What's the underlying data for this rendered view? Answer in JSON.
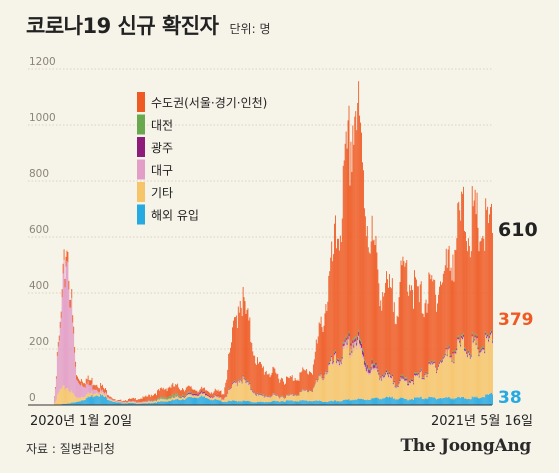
{
  "header": {
    "title": "코로나19 신규 확진자",
    "unit": "단위: 명"
  },
  "footer": {
    "source": "자료 : 질병관리청",
    "logo": "The JoongAng"
  },
  "colors": {
    "background": "#f6f3e8",
    "capital_area": "#ef5a24",
    "daejeon": "#6aa84f",
    "gwangju": "#8e1b7a",
    "daegu": "#e39ec7",
    "other": "#f6c56a",
    "overseas": "#27a9e1"
  },
  "chart_data": {
    "type": "area",
    "stacked": true,
    "x_start_label": "2020년 1월 20일",
    "x_end_label": "2021년 5월 16일",
    "x_range": [
      "2020-01-20",
      "2021-05-16"
    ],
    "ylim": [
      0,
      1200
    ],
    "yticks": [
      0,
      200,
      400,
      600,
      800,
      1000,
      1200
    ],
    "legend_position": "top-left",
    "legend": [
      "수도권(서울·경기·인천)",
      "대전",
      "광주",
      "대구",
      "기타",
      "해외 유입"
    ],
    "series": [
      {
        "name": "수도권(서울·경기·인천)",
        "color": "#ef5a24"
      },
      {
        "name": "대전",
        "color": "#6aa84f"
      },
      {
        "name": "광주",
        "color": "#8e1b7a"
      },
      {
        "name": "대구",
        "color": "#e39ec7"
      },
      {
        "name": "기타",
        "color": "#f6c56a"
      },
      {
        "name": "해외 유입",
        "color": "#27a9e1"
      }
    ],
    "x": [
      "2020-01-20",
      "2020-02-15",
      "2020-02-22",
      "2020-02-29",
      "2020-03-10",
      "2020-04-01",
      "2020-04-20",
      "2020-05-20",
      "2020-06-15",
      "2020-07-15",
      "2020-08-10",
      "2020-08-27",
      "2020-09-15",
      "2020-10-15",
      "2020-11-10",
      "2020-11-25",
      "2020-12-10",
      "2020-12-25",
      "2021-01-05",
      "2021-01-20",
      "2021-02-05",
      "2021-02-16",
      "2021-03-01",
      "2021-03-20",
      "2021-04-01",
      "2021-04-15",
      "2021-05-01",
      "2021-05-16"
    ],
    "values": {
      "수도권(서울·경기·인천)": [
        0,
        1,
        20,
        40,
        15,
        20,
        2,
        15,
        35,
        10,
        20,
        300,
        100,
        55,
        70,
        250,
        500,
        830,
        530,
        300,
        280,
        400,
        260,
        270,
        310,
        450,
        420,
        379
      ],
      "대전": [
        0,
        0,
        0,
        0,
        0,
        0,
        0,
        0,
        8,
        0,
        0,
        3,
        2,
        1,
        1,
        3,
        5,
        8,
        6,
        4,
        3,
        5,
        3,
        3,
        4,
        6,
        6,
        5
      ],
      "광주": [
        0,
        0,
        0,
        0,
        0,
        0,
        0,
        0,
        0,
        6,
        1,
        3,
        2,
        1,
        1,
        3,
        6,
        10,
        15,
        5,
        4,
        6,
        4,
        4,
        5,
        6,
        6,
        5
      ],
      "대구": [
        0,
        0,
        200,
        500,
        60,
        10,
        2,
        3,
        1,
        1,
        1,
        4,
        2,
        1,
        1,
        4,
        8,
        15,
        8,
        5,
        4,
        4,
        3,
        3,
        4,
        5,
        4,
        5
      ],
      "기타": [
        0,
        0,
        50,
        60,
        15,
        10,
        2,
        3,
        8,
        8,
        10,
        80,
        20,
        15,
        40,
        110,
        150,
        200,
        110,
        80,
        50,
        60,
        70,
        120,
        150,
        180,
        170,
        178
      ],
      "해외 유입": [
        0,
        0,
        2,
        5,
        10,
        40,
        8,
        5,
        15,
        30,
        12,
        15,
        10,
        15,
        15,
        12,
        15,
        20,
        20,
        25,
        25,
        20,
        25,
        25,
        25,
        25,
        25,
        38
      ]
    },
    "annotations": {
      "total": "610",
      "capital_area": "379",
      "overseas": "38"
    }
  }
}
